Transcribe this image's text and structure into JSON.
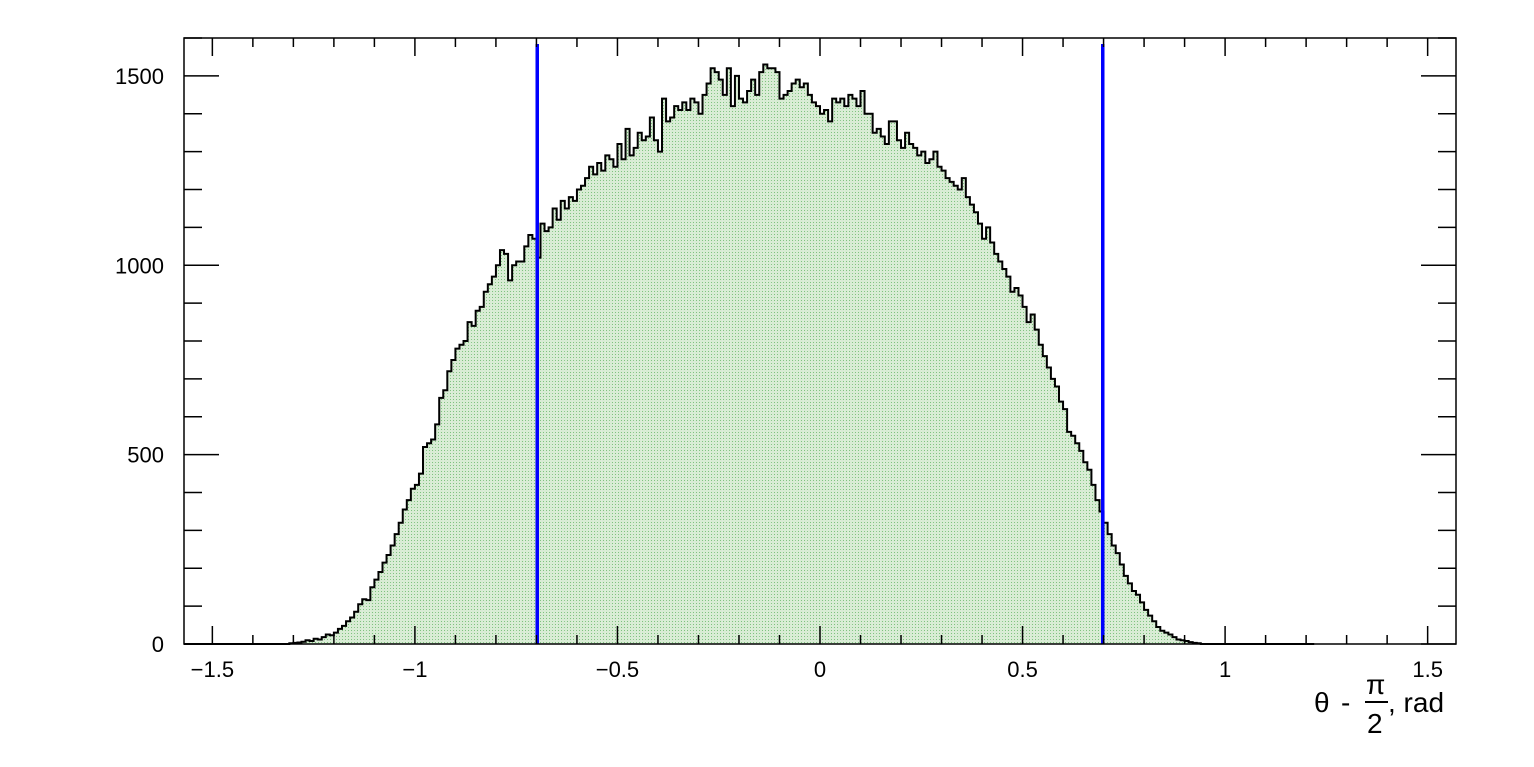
{
  "chart_data": {
    "type": "histogram",
    "title": "",
    "xlabel": {
      "theta": "θ",
      "minus": "-",
      "pi": "π",
      "two": "2",
      "unit": ", rad"
    },
    "ylabel": "",
    "xlim": [
      -1.57,
      1.57
    ],
    "ylim": [
      0,
      1600
    ],
    "x_ticks": [
      -1.5,
      -1,
      -0.5,
      0,
      0.5,
      1,
      1.5
    ],
    "x_tick_labels": [
      "−1.5",
      "−1",
      "−0.5",
      "0",
      "0.5",
      "1",
      "1.5"
    ],
    "y_ticks": [
      0,
      500,
      1000,
      1500
    ],
    "y_tick_labels": [
      "0",
      "500",
      "1000",
      "1500"
    ],
    "bin_start": -1.57,
    "bin_width": 0.01,
    "counts": [
      0,
      0,
      0,
      0,
      0,
      0,
      0,
      0,
      0,
      0,
      0,
      0,
      0,
      0,
      0,
      0,
      0,
      0,
      0,
      0,
      0,
      0,
      0,
      0,
      0,
      0,
      2,
      3,
      4,
      6,
      10,
      8,
      14,
      12,
      18,
      25,
      23,
      30,
      40,
      48,
      60,
      70,
      85,
      105,
      118,
      116,
      150,
      170,
      190,
      215,
      235,
      260,
      290,
      320,
      355,
      380,
      410,
      420,
      450,
      520,
      530,
      540,
      580,
      650,
      670,
      720,
      750,
      780,
      790,
      800,
      850,
      840,
      880,
      890,
      930,
      950,
      970,
      1000,
      1040,
      1030,
      960,
      1000,
      1010,
      1010,
      1050,
      1080,
      1070,
      1020,
      1110,
      1090,
      1100,
      1150,
      1120,
      1170,
      1150,
      1180,
      1170,
      1200,
      1210,
      1230,
      1260,
      1240,
      1270,
      1250,
      1290,
      1280,
      1260,
      1320,
      1280,
      1360,
      1290,
      1310,
      1350,
      1330,
      1340,
      1390,
      1330,
      1300,
      1440,
      1380,
      1390,
      1420,
      1410,
      1430,
      1410,
      1440,
      1430,
      1400,
      1450,
      1480,
      1520,
      1510,
      1490,
      1450,
      1520,
      1420,
      1500,
      1440,
      1430,
      1460,
      1490,
      1450,
      1510,
      1530,
      1520,
      1520,
      1510,
      1440,
      1450,
      1460,
      1480,
      1490,
      1470,
      1480,
      1450,
      1430,
      1420,
      1400,
      1410,
      1380,
      1440,
      1430,
      1440,
      1420,
      1450,
      1440,
      1420,
      1460,
      1400,
      1400,
      1350,
      1360,
      1340,
      1320,
      1380,
      1380,
      1330,
      1310,
      1350,
      1320,
      1310,
      1290,
      1300,
      1270,
      1280,
      1300,
      1260,
      1250,
      1230,
      1220,
      1210,
      1200,
      1230,
      1180,
      1160,
      1140,
      1110,
      1070,
      1100,
      1060,
      1030,
      1010,
      990,
      970,
      930,
      940,
      920,
      890,
      850,
      870,
      830,
      790,
      760,
      730,
      700,
      680,
      640,
      620,
      560,
      550,
      530,
      510,
      480,
      460,
      420,
      380,
      350,
      320,
      290,
      260,
      240,
      210,
      180,
      160,
      140,
      130,
      110,
      90,
      75,
      60,
      45,
      35,
      30,
      25,
      18,
      12,
      10,
      8,
      5,
      3,
      2,
      0,
      0,
      0,
      0,
      0,
      0,
      0,
      0,
      0,
      0,
      0,
      0,
      0,
      0,
      0,
      0,
      0,
      0,
      0,
      0,
      0,
      0,
      0,
      0,
      0,
      0,
      0,
      0
    ],
    "cut_lines": [
      -0.698,
      0.698
    ],
    "colors": {
      "fill": "#d8ecd4",
      "fill_dots": "#7fc27f",
      "outline": "#000000",
      "cut_line": "#0000ff",
      "frame": "#000000"
    }
  }
}
